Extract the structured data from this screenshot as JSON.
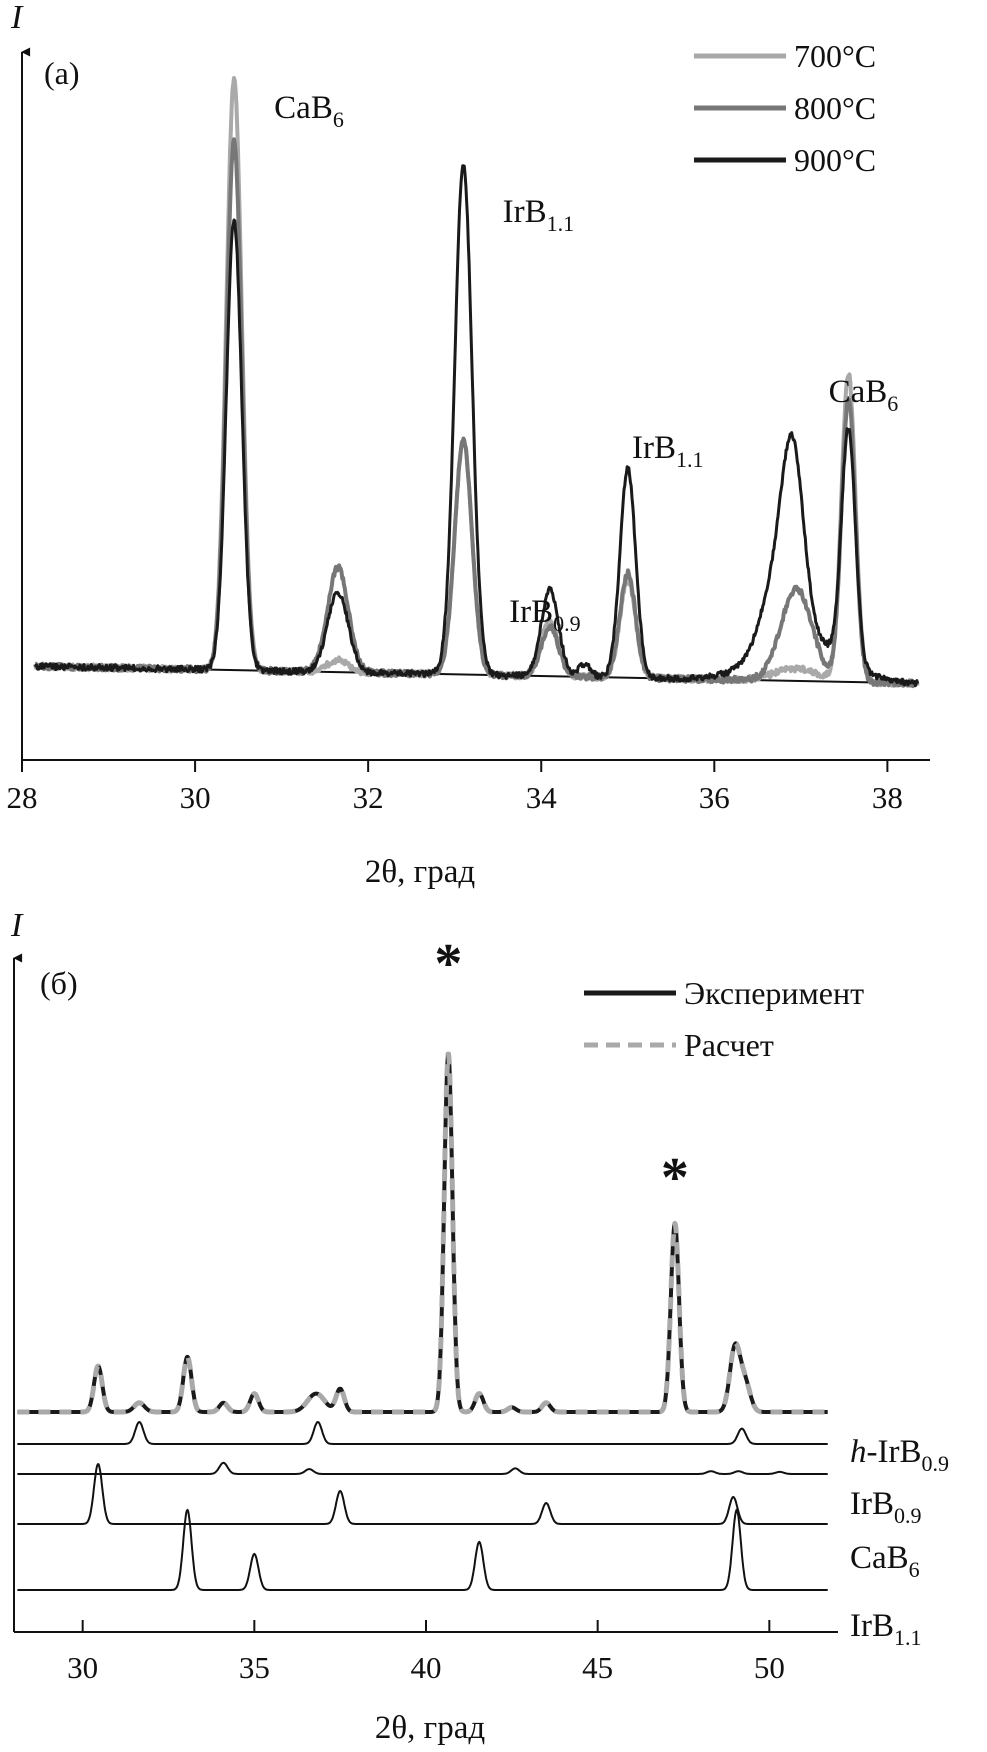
{
  "chart_data": [
    {
      "type": "line",
      "panel_label": "(a)",
      "ylabel": "I",
      "xlabel": "2θ, град",
      "xlim": [
        28,
        38.4
      ],
      "xticks": [
        28,
        30,
        32,
        34,
        36,
        38
      ],
      "yticks": [],
      "grid": false,
      "legend": "top-right",
      "series": [
        {
          "name": "700°C",
          "color": "#a9a9a9",
          "peaks": [
            [
              30.45,
              0.96,
              0.09
            ],
            [
              31.65,
              0.02,
              0.12
            ],
            [
              33.1,
              0.38,
              0.1
            ],
            [
              34.1,
              0.09,
              0.1
            ],
            [
              35.0,
              0.16,
              0.09
            ],
            [
              36.95,
              0.02,
              0.25
            ],
            [
              37.55,
              0.5,
              0.08
            ]
          ]
        },
        {
          "name": "800°C",
          "color": "#777777",
          "peaks": [
            [
              30.45,
              0.86,
              0.09
            ],
            [
              31.65,
              0.17,
              0.12
            ],
            [
              33.1,
              0.38,
              0.1
            ],
            [
              34.1,
              0.08,
              0.1
            ],
            [
              35.0,
              0.17,
              0.09
            ],
            [
              36.95,
              0.15,
              0.18
            ],
            [
              37.55,
              0.46,
              0.08
            ]
          ]
        },
        {
          "name": "900°C",
          "color": "#1a1a1a",
          "peaks": [
            [
              30.45,
              0.73,
              0.09
            ],
            [
              31.65,
              0.13,
              0.12
            ],
            [
              33.1,
              0.83,
              0.1
            ],
            [
              34.1,
              0.14,
              0.1
            ],
            [
              34.5,
              0.02,
              0.07
            ],
            [
              35.0,
              0.34,
              0.09
            ],
            [
              36.65,
              0.08,
              0.15
            ],
            [
              36.9,
              0.31,
              0.13
            ],
            [
              37.0,
              0.07,
              0.45
            ],
            [
              37.55,
              0.38,
              0.08
            ]
          ]
        }
      ],
      "annotations": [
        {
          "text": "CaB",
          "sub": "6",
          "x": 30.45
        },
        {
          "text": "IrB",
          "sub": "1.1",
          "x": 33.1
        },
        {
          "text": "IrB",
          "sub": "0.9",
          "x": 34.1
        },
        {
          "text": "IrB",
          "sub": "1.1",
          "x": 35.0
        },
        {
          "text": "CaB",
          "sub": "6",
          "x": 37.55
        }
      ]
    },
    {
      "type": "line",
      "panel_label": "(б)",
      "ylabel": "I",
      "xlabel": "2θ, град",
      "xlim": [
        28,
        52
      ],
      "xticks": [
        30,
        35,
        40,
        45,
        50
      ],
      "yticks": [],
      "grid": false,
      "legend": "top-right",
      "series": [
        {
          "name": "Эксперимент",
          "color": "#1a1a1a",
          "style": "solid",
          "peaks": [
            [
              30.45,
              0.1,
              0.12
            ],
            [
              31.65,
              0.02,
              0.15
            ],
            [
              33.05,
              0.12,
              0.12
            ],
            [
              34.1,
              0.02,
              0.12
            ],
            [
              35.0,
              0.04,
              0.12
            ],
            [
              36.8,
              0.04,
              0.25
            ],
            [
              37.5,
              0.05,
              0.12
            ],
            [
              40.65,
              0.78,
              0.12
            ],
            [
              41.55,
              0.04,
              0.12
            ],
            [
              42.5,
              0.01,
              0.12
            ],
            [
              43.5,
              0.02,
              0.12
            ],
            [
              47.25,
              0.41,
              0.12
            ],
            [
              49.0,
              0.14,
              0.15
            ],
            [
              49.3,
              0.06,
              0.15
            ]
          ]
        },
        {
          "name": "Расчет",
          "color": "#a9a9a9",
          "style": "dashed",
          "peaks": [
            [
              30.45,
              0.1,
              0.12
            ],
            [
              31.65,
              0.02,
              0.15
            ],
            [
              33.05,
              0.12,
              0.12
            ],
            [
              34.1,
              0.02,
              0.12
            ],
            [
              35.0,
              0.04,
              0.12
            ],
            [
              36.8,
              0.04,
              0.25
            ],
            [
              37.5,
              0.05,
              0.12
            ],
            [
              40.65,
              0.78,
              0.12
            ],
            [
              41.55,
              0.04,
              0.12
            ],
            [
              42.5,
              0.01,
              0.12
            ],
            [
              43.5,
              0.02,
              0.12
            ],
            [
              47.25,
              0.41,
              0.12
            ],
            [
              49.0,
              0.14,
              0.15
            ],
            [
              49.3,
              0.06,
              0.15
            ]
          ]
        }
      ],
      "markers": [
        {
          "text": "*",
          "x": 40.65
        },
        {
          "text": "*",
          "x": 47.25
        }
      ],
      "reference_patterns": [
        {
          "label_prefix": "h-",
          "text": "IrB",
          "sub": "0.9",
          "peaks": [
            [
              31.65,
              1.0
            ],
            [
              36.85,
              1.0
            ],
            [
              49.2,
              0.7
            ]
          ]
        },
        {
          "label_prefix": "",
          "text": "IrB",
          "sub": "0.9",
          "peaks": [
            [
              34.1,
              0.8
            ],
            [
              36.6,
              0.35
            ],
            [
              42.6,
              0.4
            ],
            [
              48.3,
              0.2
            ],
            [
              49.1,
              0.2
            ],
            [
              50.3,
              0.15
            ]
          ]
        },
        {
          "label_prefix": "",
          "text": "CaB",
          "sub": "6",
          "peaks": [
            [
              30.45,
              1.0
            ],
            [
              37.5,
              0.55
            ],
            [
              43.5,
              0.35
            ],
            [
              48.95,
              0.45
            ]
          ]
        },
        {
          "label_prefix": "",
          "text": "IrB",
          "sub": "1.1",
          "peaks": [
            [
              33.05,
              1.0
            ],
            [
              35.0,
              0.45
            ],
            [
              41.55,
              0.6
            ],
            [
              49.05,
              1.0
            ]
          ]
        }
      ]
    }
  ]
}
